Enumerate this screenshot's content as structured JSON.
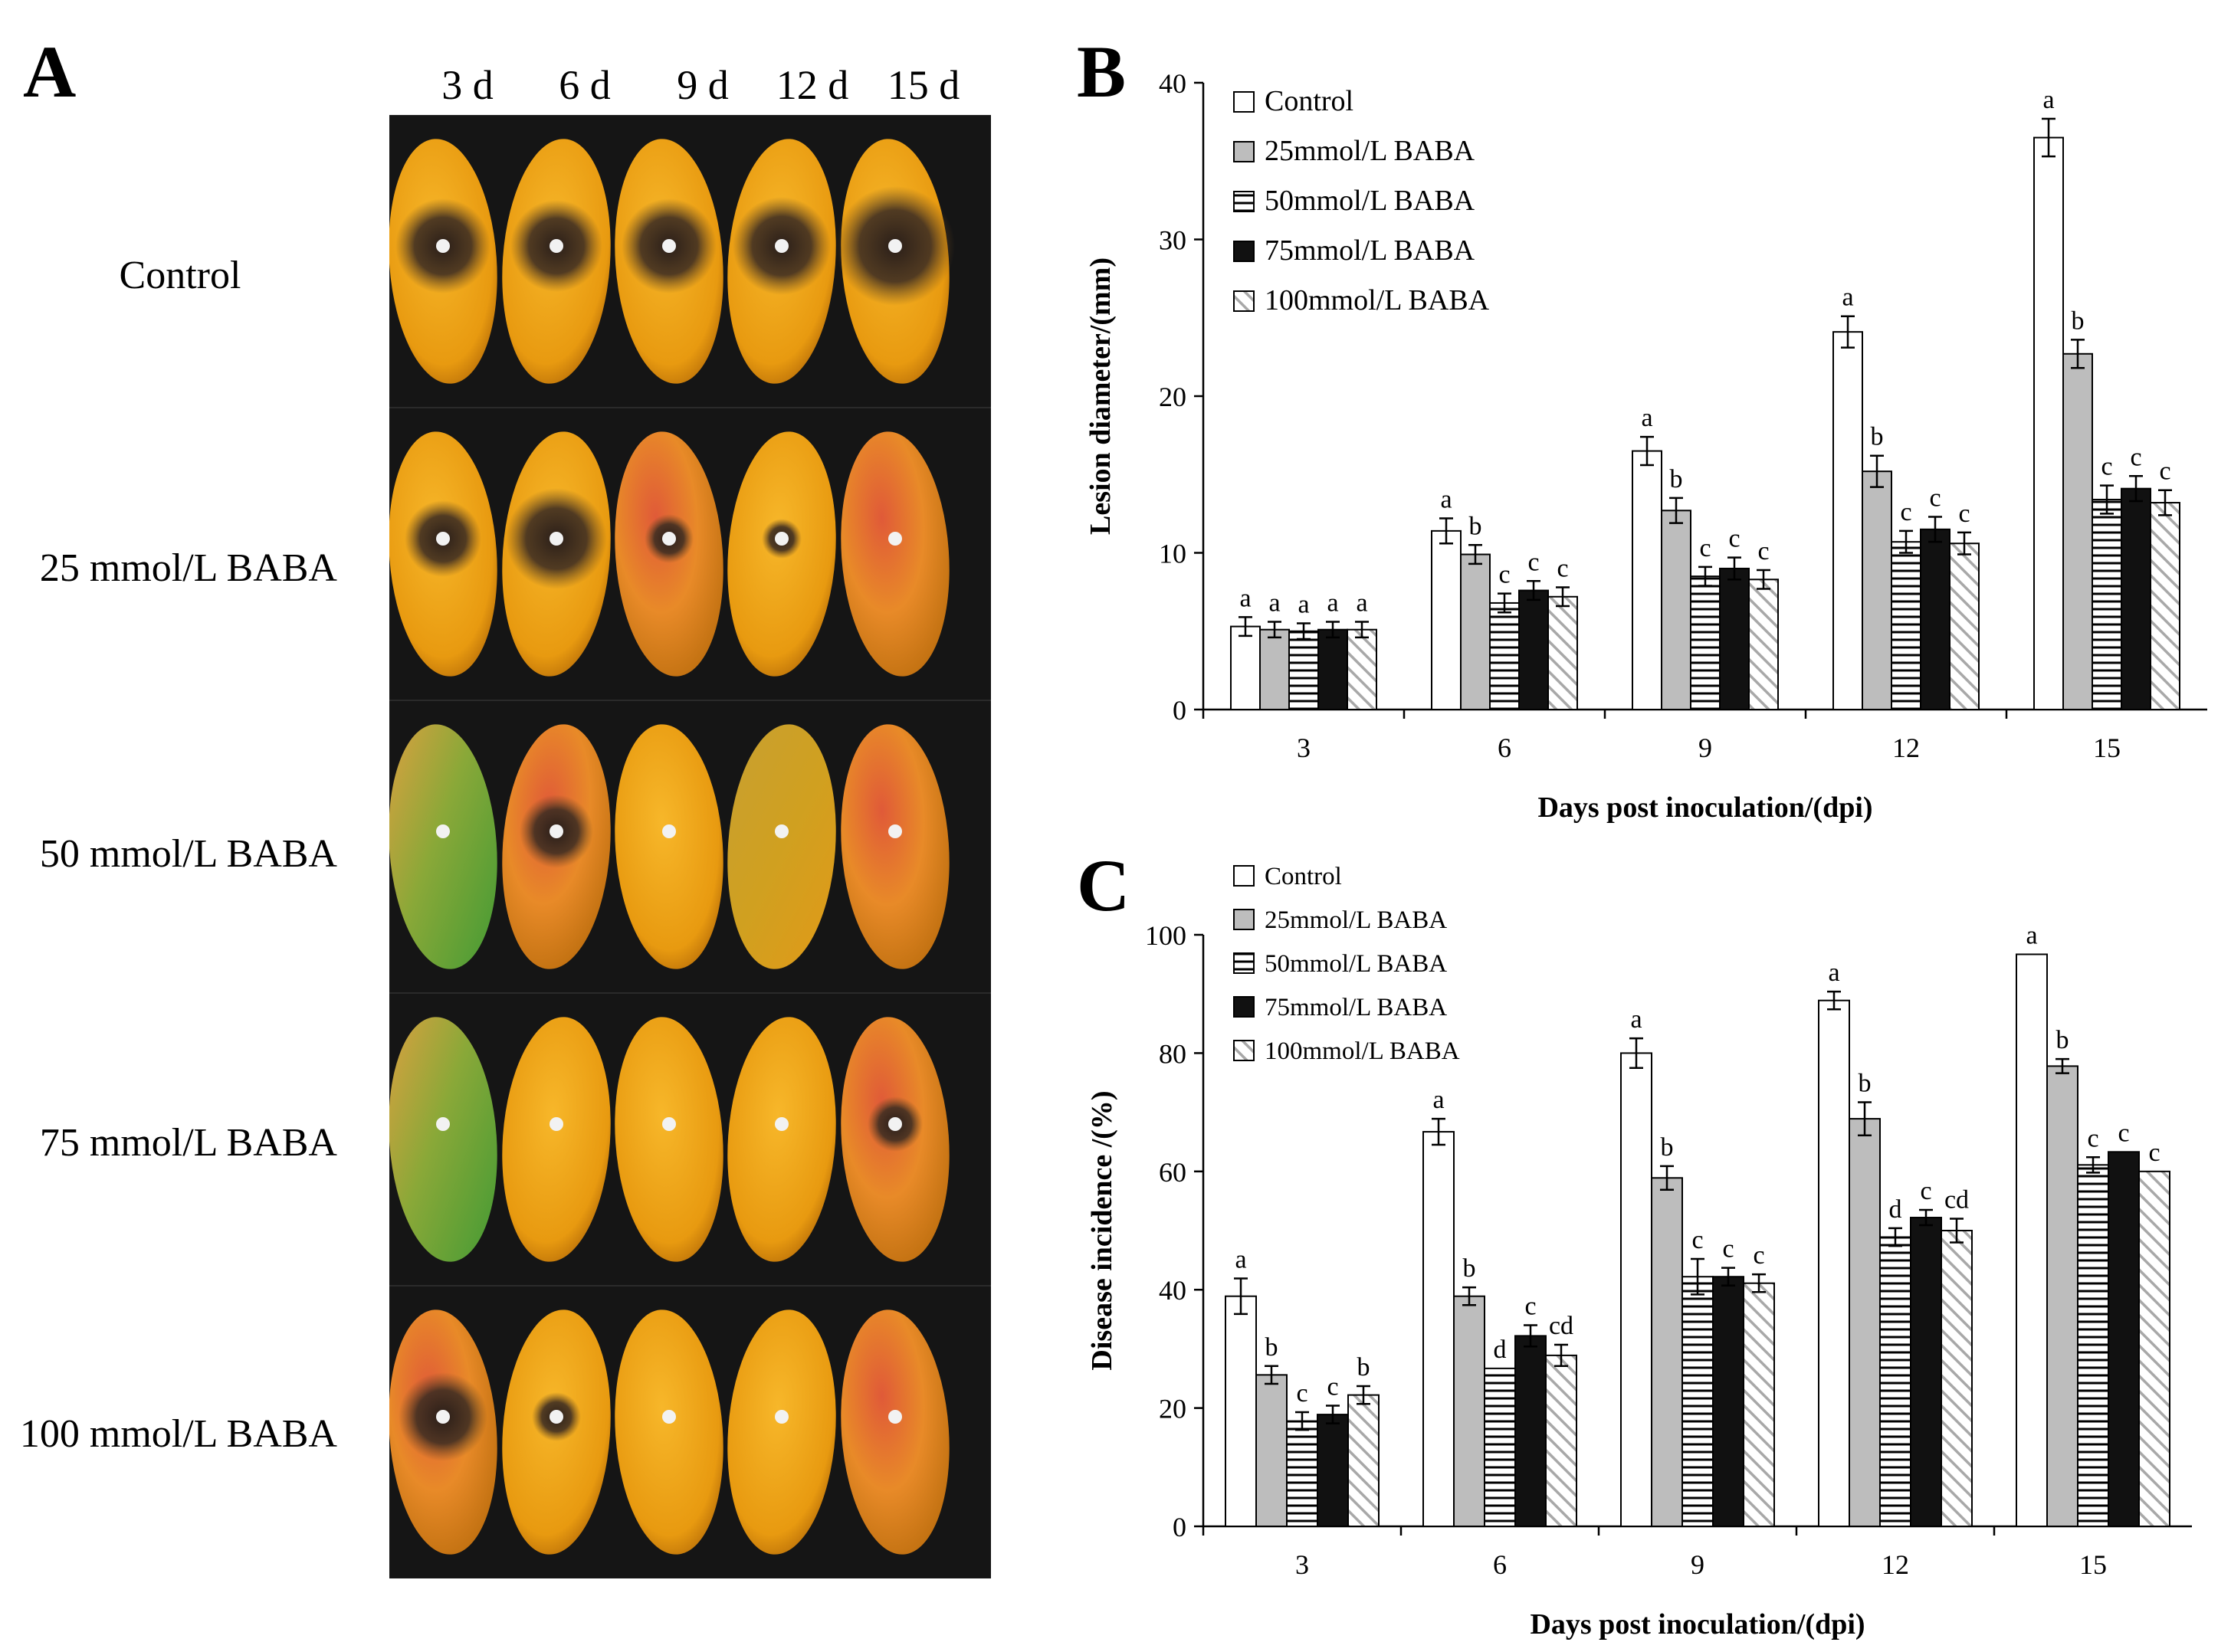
{
  "panel_a": {
    "letter": "A",
    "days": [
      "3 d",
      "6 d",
      "9 d",
      "12 d",
      "15 d"
    ],
    "rows": [
      {
        "label": "Control"
      },
      {
        "label": "25 mmol/L BABA"
      },
      {
        "label": "50  mmol/L BABA"
      },
      {
        "label": "75 mmol/L BABA"
      },
      {
        "label": "100 mmol/L BABA"
      }
    ],
    "colors": {
      "background": "#151515",
      "fruit_yellow": "#f0a818",
      "fruit_red": "#e0503a",
      "fruit_green": "#58a838",
      "lesion": "#3a2a22"
    }
  },
  "chart_data": [
    {
      "panel": "B",
      "type": "bar",
      "xlabel": "Days post inoculation/(dpi)",
      "ylabel": "Lesion diameter/(mm)",
      "ylim": [
        0,
        40
      ],
      "yticks": [
        "0",
        "10",
        "20",
        "30",
        "40"
      ],
      "categories": [
        "3",
        "6",
        "9",
        "12",
        "15"
      ],
      "legend_position": "top-left",
      "series": [
        {
          "name": "Control",
          "pattern": "white",
          "values": [
            5.3,
            11.4,
            16.5,
            24.1,
            36.5
          ],
          "errors": [
            0.6,
            0.8,
            0.9,
            1.0,
            1.2
          ],
          "labels": [
            "a",
            "a",
            "a",
            "a",
            "a"
          ]
        },
        {
          "name": "25mmol/L BABA",
          "pattern": "gray",
          "values": [
            5.1,
            9.9,
            12.7,
            15.2,
            22.7
          ],
          "errors": [
            0.5,
            0.6,
            0.8,
            1.0,
            0.9
          ],
          "labels": [
            "a",
            "b",
            "b",
            "b",
            "b"
          ]
        },
        {
          "name": "50mmol/L BABA",
          "pattern": "hlines",
          "values": [
            5.0,
            6.8,
            8.5,
            10.7,
            13.4
          ],
          "errors": [
            0.5,
            0.6,
            0.6,
            0.7,
            0.9
          ],
          "labels": [
            "a",
            "c",
            "c",
            "c",
            "c"
          ]
        },
        {
          "name": "75mmol/L BABA",
          "pattern": "black",
          "values": [
            5.1,
            7.6,
            9.0,
            11.5,
            14.1
          ],
          "errors": [
            0.5,
            0.6,
            0.7,
            0.8,
            0.8
          ],
          "labels": [
            "a",
            "c",
            "c",
            "c",
            "c"
          ]
        },
        {
          "name": "100mmol/L BABA",
          "pattern": "diag",
          "values": [
            5.1,
            7.2,
            8.3,
            10.6,
            13.2
          ],
          "errors": [
            0.5,
            0.6,
            0.6,
            0.7,
            0.8
          ],
          "labels": [
            "a",
            "c",
            "c",
            "c",
            "c"
          ]
        }
      ]
    },
    {
      "panel": "C",
      "type": "bar",
      "xlabel": "Days post inoculation/(dpi)",
      "ylabel": "Disease incidence /(%)",
      "ylim": [
        0,
        100
      ],
      "yticks": [
        "0",
        "20",
        "40",
        "60",
        "80",
        "100"
      ],
      "categories": [
        "3",
        "6",
        "9",
        "12",
        "15"
      ],
      "legend_position": "top-left",
      "series": [
        {
          "name": "Control",
          "pattern": "white",
          "values": [
            38.9,
            66.7,
            80.0,
            88.9,
            96.7
          ],
          "errors": [
            3.0,
            2.2,
            2.5,
            1.5,
            0
          ],
          "labels": [
            "a",
            "a",
            "a",
            "a",
            "a"
          ]
        },
        {
          "name": "25mmol/L BABA",
          "pattern": "gray",
          "values": [
            25.6,
            38.9,
            58.9,
            68.9,
            77.8
          ],
          "errors": [
            1.5,
            1.5,
            2.0,
            2.8,
            1.2
          ],
          "labels": [
            "b",
            "b",
            "b",
            "b",
            "b"
          ]
        },
        {
          "name": "50mmol/L BABA",
          "pattern": "hlines",
          "values": [
            17.8,
            26.7,
            42.2,
            48.9,
            61.1
          ],
          "errors": [
            1.5,
            0,
            3.0,
            1.5,
            1.3
          ],
          "labels": [
            "c",
            "d",
            "c",
            "d",
            "c"
          ]
        },
        {
          "name": "75mmol/L BABA",
          "pattern": "black",
          "values": [
            18.9,
            32.2,
            42.2,
            52.2,
            63.3
          ],
          "errors": [
            1.5,
            1.8,
            1.5,
            1.3,
            0
          ],
          "labels": [
            "c",
            "c",
            "c",
            "c",
            "c"
          ]
        },
        {
          "name": "100mmol/L BABA",
          "pattern": "diag",
          "values": [
            22.2,
            28.9,
            41.1,
            50.0,
            60.0
          ],
          "errors": [
            1.5,
            1.8,
            1.5,
            2.0,
            0
          ],
          "labels": [
            "b",
            "cd",
            "c",
            "cd",
            "c"
          ]
        }
      ]
    }
  ]
}
